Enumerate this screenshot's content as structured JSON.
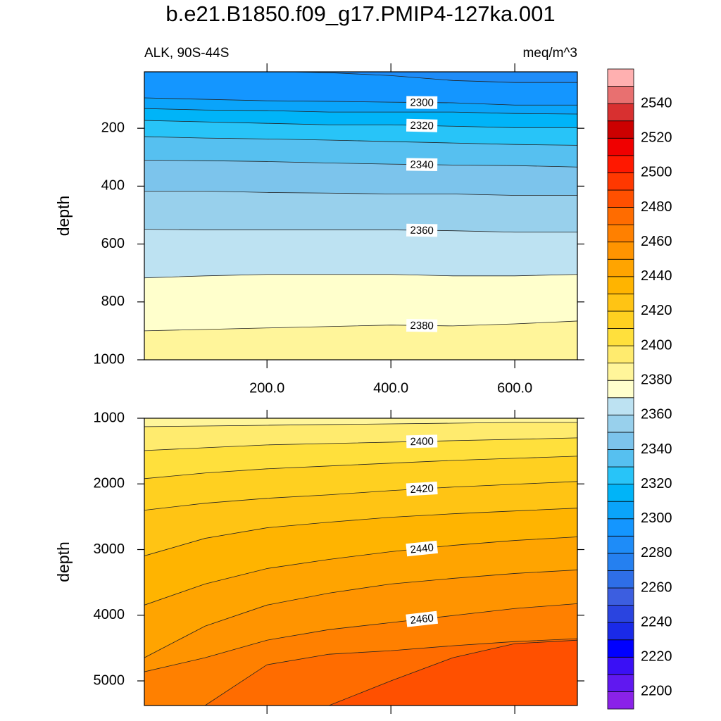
{
  "chart_data": {
    "type": "contour",
    "title": "b.e21.B1850.f09_g17.PMIP4-127ka.001",
    "subtitle": "ALK, 90S-44S",
    "units": "meq/m^3",
    "colorbar": {
      "levels": [
        2200,
        2210,
        2220,
        2230,
        2240,
        2250,
        2260,
        2270,
        2280,
        2290,
        2300,
        2310,
        2320,
        2330,
        2340,
        2350,
        2360,
        2370,
        2380,
        2390,
        2400,
        2410,
        2420,
        2430,
        2440,
        2450,
        2460,
        2470,
        2480,
        2490,
        2500,
        2510,
        2520,
        2530,
        2540,
        2550
      ],
      "colors": [
        "#8a22e8",
        "#6018f0",
        "#3a10f5",
        "#0000ff",
        "#1a2ae8",
        "#2a44e0",
        "#3c5ee0",
        "#2e6ee8",
        "#2580f0",
        "#1e8cf8",
        "#1496ff",
        "#0aa4fa",
        "#00b4f8",
        "#28c4f8",
        "#56c0f0",
        "#7cc4ec",
        "#98d0ec",
        "#bde2f2",
        "#ffffcc",
        "#fff59a",
        "#ffeb6e",
        "#ffe03c",
        "#ffd020",
        "#ffc414",
        "#ffb400",
        "#ffa400",
        "#ff9400",
        "#ff8000",
        "#ff6c00",
        "#ff5000",
        "#ff3800",
        "#ff1800",
        "#f00000",
        "#cc0000",
        "#d83030",
        "#e87070",
        "#ffb0b0"
      ],
      "ticks": [
        2200,
        2220,
        2240,
        2260,
        2280,
        2300,
        2320,
        2340,
        2360,
        2380,
        2400,
        2420,
        2440,
        2460,
        2480,
        2500,
        2520,
        2540
      ]
    },
    "panels": [
      {
        "ylabel": "depth",
        "x": [
          2,
          100,
          200,
          300,
          400,
          500,
          600,
          701
        ],
        "xlim": [
          2,
          701
        ],
        "xticks": [
          {
            "value": 200,
            "label": "200.0"
          },
          {
            "value": 400,
            "label": "400.0"
          },
          {
            "value": 600,
            "label": "600.0"
          }
        ],
        "xtick_labels": true,
        "ylim": [
          5,
          1000
        ],
        "y_reversed": true,
        "yticks": [
          200,
          400,
          600,
          800,
          1000
        ],
        "contours": [
          {
            "level": 2290,
            "labeled": false,
            "depth": [
              3,
              3,
              3,
              8,
              18,
              35,
              42,
              42
            ]
          },
          {
            "level": 2300,
            "labeled": true,
            "depth": [
              95,
              100,
              105,
              107,
              110,
              112,
              120,
              120
            ]
          },
          {
            "level": 2310,
            "labeled": false,
            "depth": [
              132,
              137,
              139,
              144,
              144,
              144,
              149,
              151
            ]
          },
          {
            "level": 2320,
            "labeled": true,
            "depth": [
              173,
              178,
              183,
              188,
              188,
              193,
              198,
              198
            ]
          },
          {
            "level": 2330,
            "labeled": false,
            "depth": [
              229,
              234,
              237,
              241,
              246,
              251,
              256,
              259
            ]
          },
          {
            "level": 2340,
            "labeled": true,
            "depth": [
              310,
              312,
              315,
              320,
              324,
              327,
              329,
              334
            ]
          },
          {
            "level": 2350,
            "labeled": false,
            "depth": [
              417,
              417,
              422,
              424,
              427,
              427,
              432,
              432
            ]
          },
          {
            "level": 2360,
            "labeled": true,
            "depth": [
              549,
              551,
              551,
              551,
              551,
              554,
              559,
              559
            ]
          },
          {
            "level": 2370,
            "labeled": false,
            "depth": [
              717,
              710,
              705,
              705,
              705,
              710,
              710,
              705
            ]
          },
          {
            "level": 2380,
            "labeled": true,
            "depth": [
              900,
              895,
              890,
              885,
              880,
              883,
              876,
              866
            ]
          }
        ]
      },
      {
        "ylabel": "depth",
        "x": [
          2,
          100,
          200,
          300,
          400,
          500,
          600,
          701
        ],
        "xlim": [
          2,
          701
        ],
        "xticks": [
          200,
          400,
          600
        ],
        "xtick_labels": false,
        "ylim": [
          1000,
          5375
        ],
        "y_reversed": true,
        "yticks": [
          1000,
          2000,
          3000,
          4000,
          5000
        ],
        "contours": [
          {
            "level": 2390,
            "labeled": false,
            "depth": [
              1128,
              1118,
              1107,
              1096,
              1086,
              1075,
              1064,
              1064
            ]
          },
          {
            "level": 2400,
            "labeled": true,
            "depth": [
              1492,
              1449,
              1406,
              1385,
              1364,
              1342,
              1321,
              1299
            ]
          },
          {
            "level": 2410,
            "labeled": false,
            "depth": [
              1920,
              1834,
              1770,
              1727,
              1684,
              1642,
              1610,
              1578
            ]
          },
          {
            "level": 2420,
            "labeled": true,
            "depth": [
              2401,
              2294,
              2219,
              2166,
              2102,
              2048,
              2005,
              1963
            ]
          },
          {
            "level": 2430,
            "labeled": false,
            "depth": [
              3096,
              2829,
              2668,
              2583,
              2508,
              2455,
              2412,
              2369
            ]
          },
          {
            "level": 2440,
            "labeled": true,
            "depth": [
              3845,
              3524,
              3289,
              3150,
              3032,
              2936,
              2861,
              2807
            ]
          },
          {
            "level": 2450,
            "labeled": false,
            "depth": [
              4647,
              4166,
              3845,
              3663,
              3524,
              3439,
              3364,
              3310
            ]
          },
          {
            "level": 2460,
            "labeled": true,
            "depth": [
              4861,
              4647,
              4380,
              4219,
              4112,
              4005,
              3898,
              3824
            ]
          },
          {
            "level": 2470,
            "labeled": false,
            "depth": [
              5375,
              5375,
              4754,
              4594,
              4540,
              4465,
              4401,
              4358
            ]
          },
          {
            "level": 2480,
            "labeled": false,
            "depth": [
              5375,
              5375,
              5375,
              5375,
              5000,
              4647,
              4433,
              4380
            ]
          }
        ]
      }
    ]
  }
}
